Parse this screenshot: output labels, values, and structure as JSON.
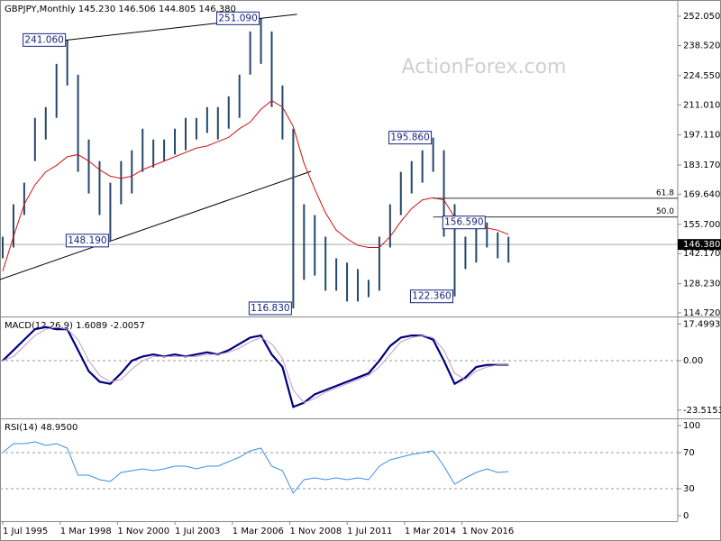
{
  "header": "GBPJPY,Monthly  145.230 146.506 144.805 146.380",
  "watermark": "ActionForex.com",
  "xtick_labels": [
    "1 Jul 1995",
    "1 Mar 1998",
    "1 Nov 2000",
    "1 Jul 2003",
    "1 Mar 2006",
    "1 Nov 2008",
    "1 Jul 2011",
    "1 Mar 2014",
    "1 Nov 2016"
  ],
  "chart_data": [
    {
      "type": "range-bar",
      "color": "#24476b",
      "ma_color": "#d01010",
      "high": [
        150,
        165,
        175,
        205,
        210,
        230,
        241.06,
        225,
        195,
        185,
        175,
        185,
        190,
        200,
        195,
        195,
        200,
        205,
        205,
        210,
        210,
        215,
        225,
        245,
        251.09,
        245,
        220,
        200,
        165,
        160,
        150,
        140,
        138,
        135,
        130,
        150,
        165,
        180,
        185,
        190,
        195.86,
        190,
        165,
        150,
        155,
        156.59,
        152,
        150
      ],
      "low": [
        140,
        145,
        160,
        185,
        195,
        205,
        220,
        180,
        170,
        160,
        148.19,
        165,
        170,
        180,
        182,
        185,
        188,
        190,
        195,
        198,
        195,
        200,
        205,
        225,
        230,
        210,
        195,
        116.83,
        130,
        132,
        125,
        125,
        120,
        120,
        122,
        125,
        145,
        160,
        170,
        175,
        180,
        150,
        122.36,
        135,
        138,
        145,
        140,
        138
      ],
      "ma": [
        134,
        150,
        165,
        174,
        180,
        183,
        187,
        188,
        185,
        181,
        178,
        177,
        178,
        181,
        183,
        185,
        187,
        189,
        191,
        192,
        194,
        196,
        200,
        203,
        209,
        213,
        210,
        201,
        184,
        172,
        161,
        153,
        149,
        146,
        145,
        145,
        150,
        157,
        163,
        167,
        168,
        167,
        159,
        157,
        155,
        154,
        153,
        151
      ],
      "ylim": [
        113.47,
        257.9
      ],
      "yticks": [
        {
          "value": 252.05,
          "label": "252.050"
        },
        {
          "value": 238.52,
          "label": "238.520"
        },
        {
          "value": 224.55,
          "label": "224.550"
        },
        {
          "value": 211.01,
          "label": "211.010"
        },
        {
          "value": 197.11,
          "label": "197.110"
        },
        {
          "value": 183.17,
          "label": "183.170"
        },
        {
          "value": 169.64,
          "label": "169.640"
        },
        {
          "value": 155.7,
          "label": "155.700"
        },
        {
          "value": 142.17,
          "label": "142.170"
        },
        {
          "value": 128.23,
          "label": "128.230"
        },
        {
          "value": 114.72,
          "label": "114.720"
        }
      ],
      "grid": false,
      "annotations": [
        {
          "value": 251.09,
          "label": "251.090"
        },
        {
          "value": 241.06,
          "label": "241.060"
        },
        {
          "value": 195.86,
          "label": "195.860"
        },
        {
          "value": 156.59,
          "label": "156.590"
        },
        {
          "value": 148.19,
          "label": "148.190"
        },
        {
          "value": 116.83,
          "label": "116.830"
        },
        {
          "value": 122.36,
          "label": "122.360"
        }
      ],
      "fib": {
        "from": 122.36,
        "to": 195.86,
        "levels": [
          61.8,
          {
            "value": 50,
            "label": "50.0"
          }
        ]
      },
      "last": {
        "value": 146.38,
        "label": "146.380"
      }
    },
    {
      "type": "line",
      "title": "MACD(12,26,9) 1.6089 -2.0057",
      "series": [
        {
          "color": "#00007f",
          "width": 2.2,
          "values": [
            0,
            5,
            10,
            15,
            16,
            15,
            15,
            5,
            -5,
            -10,
            -11,
            -6,
            0,
            2,
            3,
            2,
            3,
            2,
            3,
            4,
            3,
            5,
            8,
            11,
            12,
            3,
            -3,
            -22,
            -20,
            -16,
            -14,
            -12,
            -10,
            -8,
            -6,
            0,
            7,
            11,
            12,
            12,
            10,
            0,
            -11,
            -8,
            -3,
            -2,
            -2,
            -2
          ]
        },
        {
          "color": "#c49ac4",
          "width": 1,
          "values": [
            0,
            2,
            7,
            12,
            15,
            16,
            15,
            10,
            0,
            -7,
            -10,
            -9,
            -4,
            0,
            2,
            2,
            2,
            2,
            2,
            3,
            3,
            4,
            6,
            9,
            11,
            8,
            1,
            -14,
            -20,
            -18,
            -15,
            -13,
            -11,
            -9,
            -7,
            -3,
            3,
            9,
            11,
            12,
            11,
            5,
            -6,
            -9,
            -5,
            -3,
            -2,
            -2
          ]
        }
      ],
      "ylim": [
        -26.6,
        20.2
      ],
      "yticks": [
        17.4993,
        {
          "value": 0,
          "label": "0.00"
        },
        -23.5153
      ],
      "grid": "dashed"
    },
    {
      "type": "line",
      "title": "RSI(14) 48.9500",
      "series": [
        {
          "color": "#3a8fe0",
          "width": 1,
          "values": [
            70,
            80,
            80,
            82,
            78,
            80,
            75,
            45,
            45,
            40,
            38,
            48,
            50,
            52,
            50,
            52,
            55,
            55,
            52,
            55,
            55,
            60,
            65,
            72,
            75,
            55,
            50,
            25,
            40,
            42,
            40,
            42,
            40,
            42,
            40,
            55,
            62,
            65,
            68,
            70,
            72,
            55,
            35,
            42,
            48,
            52,
            48,
            49
          ]
        }
      ],
      "ylim": [
        -6,
        106
      ],
      "yticks": [
        100,
        70,
        30,
        0
      ],
      "grid": "dashed"
    }
  ]
}
